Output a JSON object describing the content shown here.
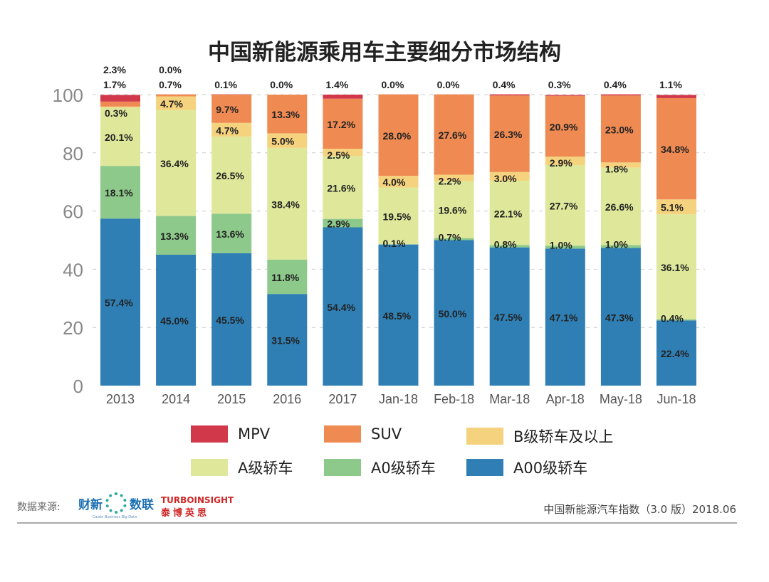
{
  "chart_data": {
    "type": "bar",
    "stacked": true,
    "title": "中国新能源乘用车主要细分市场结构",
    "categories": [
      "2013",
      "2014",
      "2015",
      "2016",
      "2017",
      "Jan-18",
      "Feb-18",
      "Mar-18",
      "Apr-18",
      "May-18",
      "Jun-18"
    ],
    "ylim": [
      0,
      100
    ],
    "yticks": [
      0,
      20,
      40,
      60,
      80,
      100
    ],
    "grid": true,
    "legend_position": "bottom",
    "series": [
      {
        "name": "A00级轿车",
        "color": "#2f7fb4",
        "values": [
          57.4,
          45.0,
          45.5,
          31.5,
          54.4,
          48.5,
          50.0,
          47.5,
          47.1,
          47.3,
          22.4
        ]
      },
      {
        "name": "A0级轿车",
        "color": "#8dc98b",
        "values": [
          18.1,
          13.3,
          13.6,
          11.8,
          2.9,
          0.1,
          0.7,
          0.8,
          1.0,
          1.0,
          0.4
        ]
      },
      {
        "name": "A级轿车",
        "color": "#dfe89a",
        "values": [
          20.1,
          36.4,
          26.5,
          38.4,
          21.6,
          19.5,
          19.6,
          22.1,
          27.7,
          26.6,
          36.1
        ]
      },
      {
        "name": "B级轿车及以上",
        "color": "#f5d27e",
        "values": [
          0.3,
          4.7,
          4.7,
          5.0,
          2.5,
          4.0,
          2.2,
          3.0,
          2.9,
          1.8,
          5.1
        ]
      },
      {
        "name": "SUV",
        "color": "#ee8a52",
        "values": [
          1.7,
          0.7,
          9.7,
          13.3,
          17.2,
          28.0,
          27.6,
          26.3,
          20.9,
          23.0,
          34.8
        ]
      },
      {
        "name": "MPV",
        "color": "#d1394a",
        "values": [
          2.3,
          0.0,
          0.1,
          0.0,
          1.4,
          0.0,
          0.0,
          0.4,
          0.3,
          0.4,
          1.1
        ]
      }
    ],
    "legend_order": [
      "MPV",
      "SUV",
      "B级轿车及以上",
      "A级轿车",
      "A0级轿车",
      "A00级轿车"
    ]
  },
  "footer": {
    "source_label": "数据来源:",
    "logo1_text": "财新 数联",
    "logo1_sub": "Caixin Business Big Data",
    "logo2_en": "TURBOINSIGHT",
    "logo2_cn": "泰博英思",
    "right": "中国新能源汽车指数（3.0 版）2018.06"
  }
}
